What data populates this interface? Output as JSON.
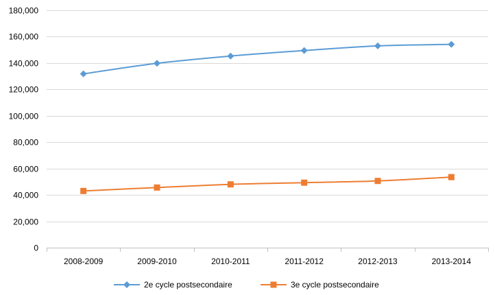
{
  "chart_data": {
    "type": "line",
    "title": "",
    "xlabel": "",
    "ylabel": "",
    "categories": [
      "2008-2009",
      "2009-2010",
      "2010-2011",
      "2011-2012",
      "2012-2013",
      "2013-2014"
    ],
    "ylim": [
      0,
      180000
    ],
    "yticks": [
      0,
      20000,
      40000,
      60000,
      80000,
      100000,
      120000,
      140000,
      160000,
      180000
    ],
    "ytick_labels": [
      "0",
      "20,000",
      "40,000",
      "60,000",
      "80,000",
      "100,000",
      "120,000",
      "140,000",
      "160,000",
      "180,000"
    ],
    "grid": true,
    "legend_position": "bottom",
    "series": [
      {
        "name": "2e cycle postsecondaire",
        "color": "#5B9BD5",
        "marker": "diamond",
        "values": [
          131800,
          139800,
          145300,
          149500,
          153000,
          154200
        ]
      },
      {
        "name": "3e cycle postsecondaire",
        "color": "#ED7D31",
        "marker": "square",
        "values": [
          43000,
          45600,
          48000,
          49300,
          50600,
          53500
        ]
      }
    ]
  }
}
